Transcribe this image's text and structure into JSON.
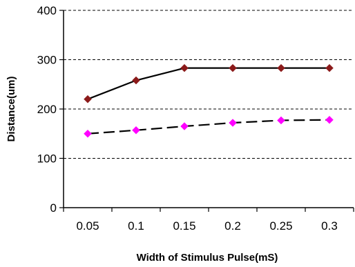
{
  "chart_data": {
    "type": "line",
    "title": "",
    "xlabel": "Width of Stimulus Pulse(mS)",
    "ylabel": "Distance(um)",
    "categories": [
      "0.05",
      "0.1",
      "0.15",
      "0.2",
      "0.25",
      "0.3"
    ],
    "ylim": [
      0,
      400
    ],
    "yticks": [
      "0",
      "100",
      "200",
      "300",
      "400"
    ],
    "grid": "horizontal dashed",
    "legend": "none",
    "series": [
      {
        "values": [
          220,
          258,
          283,
          283,
          283,
          283
        ],
        "line_color": "#000000",
        "line_style": "solid",
        "marker": "diamond",
        "marker_color": "#8b1a1a"
      },
      {
        "values": [
          150,
          157,
          165,
          172,
          177,
          178
        ],
        "line_color": "#000000",
        "line_style": "dashed",
        "marker": "diamond",
        "marker_color": "#ff00ff"
      }
    ]
  }
}
